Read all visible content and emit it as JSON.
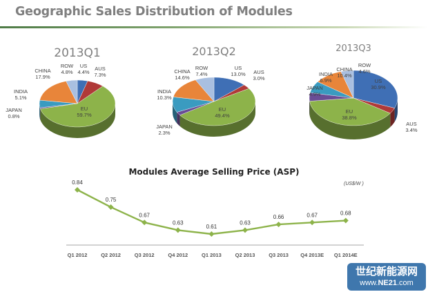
{
  "header": {
    "title": "Geographic Sales Distribution of Modules"
  },
  "colors": {
    "US": "#3f6fb5",
    "AUS": "#b03a38",
    "EU": "#8db34a",
    "JAPAN": "#6a4d96",
    "INDIA": "#3a9bc0",
    "CHINA": "#e8853a",
    "ROW": "#a9bfe0",
    "line": "#8db34a",
    "title_rule": "#4e7b46",
    "watermark_bg": "#3f77ad"
  },
  "chart_data": [
    {
      "type": "pie",
      "title": "2013Q1",
      "slices": [
        {
          "label": "US",
          "value": 4.4,
          "text": "4.4%"
        },
        {
          "label": "AUS",
          "value": 7.3,
          "text": "7.3%"
        },
        {
          "label": "EU",
          "value": 59.7,
          "text": "59.7%"
        },
        {
          "label": "JAPAN",
          "value": 0.8,
          "text": "0.8%"
        },
        {
          "label": "INDIA",
          "value": 5.1,
          "text": "5.1%"
        },
        {
          "label": "CHINA",
          "value": 17.9,
          "text": "17.9%"
        },
        {
          "label": "ROW",
          "value": 4.8,
          "text": "4.8%"
        }
      ]
    },
    {
      "type": "pie",
      "title": "2013Q2",
      "slices": [
        {
          "label": "US",
          "value": 13.0,
          "text": "13.0%"
        },
        {
          "label": "AUS",
          "value": 3.0,
          "text": "3.0%"
        },
        {
          "label": "EU",
          "value": 49.4,
          "text": "49.4%"
        },
        {
          "label": "JAPAN",
          "value": 2.3,
          "text": "2.3%"
        },
        {
          "label": "INDIA",
          "value": 10.3,
          "text": "10.3%"
        },
        {
          "label": "CHINA",
          "value": 14.6,
          "text": "14.6%"
        },
        {
          "label": "ROW",
          "value": 7.4,
          "text": "7.4%"
        }
      ]
    },
    {
      "type": "pie",
      "title": "2013Q3",
      "slices": [
        {
          "label": "US",
          "value": 30.9,
          "text": "30.9%"
        },
        {
          "label": "AUS",
          "value": 3.4,
          "text": "3.4%"
        },
        {
          "label": "EU",
          "value": 38.8,
          "text": "38.8%"
        },
        {
          "label": "JAPAN",
          "value": 4.9,
          "text": "4.9%"
        },
        {
          "label": "INDIA",
          "value": 6.9,
          "text": "6.9%"
        },
        {
          "label": "CHINA",
          "value": 10.4,
          "text": "10.4%"
        },
        {
          "label": "ROW",
          "value": 4.6,
          "text": "4.6%"
        }
      ]
    },
    {
      "type": "line",
      "title": "Modules Average Selling Price (ASP)",
      "unit_label": "(US$/W )",
      "xlabel": "",
      "ylabel": "",
      "categories": [
        "Q1 2012",
        "Q2 2012",
        "Q3 2012",
        "Q4 2012",
        "Q1 2013",
        "Q2 2013",
        "Q3 2013",
        "Q4 2013E",
        "Q1 2014E"
      ],
      "series": [
        {
          "name": "ASP",
          "values": [
            0.84,
            0.75,
            0.67,
            0.63,
            0.61,
            0.63,
            0.66,
            0.67,
            0.68
          ]
        }
      ],
      "ylim": [
        0.55,
        0.85
      ],
      "grid": false,
      "legend": "none"
    }
  ],
  "watermark": {
    "cn_text": "世纪新能源网",
    "url_prefix": "www.",
    "url_brand": "NE21",
    "url_suffix": ".com"
  }
}
